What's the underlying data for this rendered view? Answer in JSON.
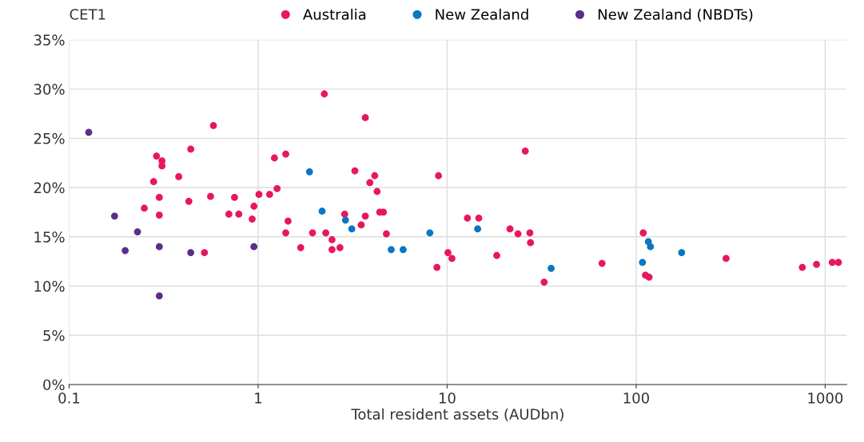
{
  "chart_data": {
    "type": "scatter",
    "ylabel": "CET1",
    "xlabel": "Total resident assets (AUDbn)",
    "log": "x",
    "grid": true,
    "legend": "top",
    "marker": "circle",
    "xlim": [
      0.1,
      1300
    ],
    "xticks": [
      0.1,
      1,
      10,
      100,
      1000
    ],
    "ylim": [
      0,
      35
    ],
    "yticks": [
      {
        "value": 0,
        "label": "0%"
      },
      {
        "value": 5,
        "label": "5%"
      },
      {
        "value": 10,
        "label": "10%"
      },
      {
        "value": 15,
        "label": "15%"
      },
      {
        "value": 20,
        "label": "20%"
      },
      {
        "value": 25,
        "label": "25%"
      },
      {
        "value": 30,
        "label": "30%"
      },
      {
        "value": 35,
        "label": "35%"
      }
    ],
    "series": [
      {
        "name": "Australia",
        "color": "#e8175d",
        "x": [
          0.58,
          0.44,
          0.29,
          0.31,
          0.31,
          0.38,
          0.28,
          0.3,
          0.43,
          0.56,
          0.75,
          1.01,
          0.95,
          0.25,
          0.3,
          0.7,
          0.79,
          0.93,
          0.52,
          2.24,
          3.69,
          1.22,
          1.4,
          3.25,
          4.14,
          3.9,
          4.26,
          9.0,
          1.15,
          1.26,
          1.44,
          1.4,
          1.68,
          1.94,
          2.28,
          2.46,
          2.46,
          2.71,
          2.87,
          3.69,
          3.51,
          4.4,
          4.6,
          4.77,
          10.1,
          10.6,
          8.83,
          25.9,
          12.8,
          14.7,
          21.5,
          23.7,
          27.4,
          27.6,
          18.3,
          32.6,
          66,
          109,
          112,
          117,
          299,
          757,
          900,
          1090,
          1175
        ],
        "values": [
          26.3,
          23.9,
          23.2,
          22.7,
          22.2,
          21.1,
          20.6,
          19.0,
          18.6,
          19.1,
          19.0,
          19.3,
          18.1,
          17.9,
          17.2,
          17.3,
          17.3,
          16.8,
          13.4,
          29.5,
          27.1,
          23.0,
          23.4,
          21.7,
          21.2,
          20.5,
          19.6,
          21.2,
          19.3,
          19.9,
          16.6,
          15.4,
          13.9,
          15.4,
          15.4,
          14.7,
          13.7,
          13.9,
          17.3,
          17.1,
          16.2,
          17.5,
          17.5,
          15.3,
          13.4,
          12.8,
          11.9,
          23.7,
          16.9,
          16.9,
          15.8,
          15.3,
          15.4,
          14.4,
          13.1,
          10.4,
          12.3,
          15.4,
          11.1,
          10.9,
          12.8,
          11.9,
          12.2,
          12.4,
          12.4
        ]
      },
      {
        "name": "New Zealand",
        "color": "#0a77c1",
        "x": [
          1.87,
          2.18,
          2.9,
          3.13,
          5.06,
          5.85,
          8.1,
          14.5,
          35.5,
          108,
          116,
          119,
          174
        ],
        "values": [
          21.6,
          17.6,
          16.7,
          15.8,
          13.7,
          13.7,
          15.4,
          15.8,
          11.8,
          12.4,
          14.5,
          14.0,
          13.4
        ]
      },
      {
        "name": "New Zealand (NBDTs)",
        "color": "#5b2d8c",
        "x": [
          0.127,
          0.174,
          0.23,
          0.198,
          0.3,
          0.44,
          0.95,
          0.3
        ],
        "values": [
          25.6,
          17.1,
          15.5,
          13.6,
          14.0,
          13.4,
          14.0,
          9.0
        ]
      }
    ]
  }
}
